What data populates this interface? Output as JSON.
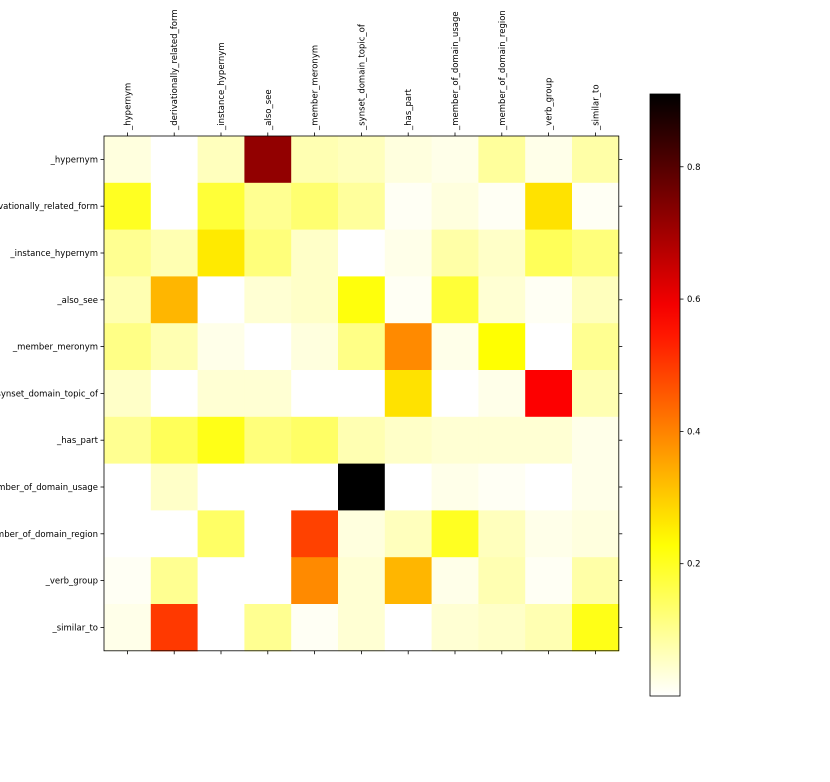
{
  "chart_data": {
    "type": "heatmap",
    "title": "",
    "xlabel": "",
    "ylabel": "",
    "colormap": "hot_r",
    "x_labels": [
      "_hypernym",
      "_derivationally_related_form",
      "_instance_hypernym",
      "_also_see",
      "_member_meronym",
      "_synset_domain_topic_of",
      "_has_part",
      "_member_of_domain_usage",
      "_member_of_domain_region",
      "_verb_group",
      "_similar_to"
    ],
    "y_labels": [
      "_hypernym",
      "_derivationally_related_form",
      "_instance_hypernym",
      "_also_see",
      "_member_meronym",
      "_synset_domain_topic_of",
      "_has_part",
      "_member_of_domain_usage",
      "_member_of_domain_region",
      "_verb_group",
      "_similar_to"
    ],
    "values": [
      [
        0.03,
        0.0,
        0.06,
        0.72,
        0.07,
        0.06,
        0.03,
        0.02,
        0.09,
        0.02,
        0.08
      ],
      [
        0.2,
        0.0,
        0.18,
        0.1,
        0.13,
        0.09,
        0.01,
        0.03,
        0.01,
        0.27,
        0.01
      ],
      [
        0.1,
        0.07,
        0.26,
        0.12,
        0.05,
        0.0,
        0.02,
        0.08,
        0.05,
        0.15,
        0.12
      ],
      [
        0.07,
        0.33,
        0.0,
        0.04,
        0.05,
        0.22,
        0.01,
        0.18,
        0.04,
        0.01,
        0.06
      ],
      [
        0.11,
        0.07,
        0.02,
        0.0,
        0.03,
        0.11,
        0.39,
        0.02,
        0.23,
        0.0,
        0.1
      ],
      [
        0.05,
        0.0,
        0.04,
        0.04,
        0.0,
        0.0,
        0.27,
        0.0,
        0.02,
        0.58,
        0.07
      ],
      [
        0.1,
        0.15,
        0.21,
        0.12,
        0.14,
        0.07,
        0.05,
        0.04,
        0.04,
        0.04,
        0.02
      ],
      [
        0.0,
        0.05,
        0.0,
        0.0,
        0.0,
        0.91,
        0.0,
        0.02,
        0.01,
        0.0,
        0.02
      ],
      [
        0.0,
        0.0,
        0.14,
        0.0,
        0.49,
        0.03,
        0.06,
        0.2,
        0.06,
        0.02,
        0.03
      ],
      [
        0.01,
        0.1,
        0.0,
        0.0,
        0.39,
        0.04,
        0.33,
        0.02,
        0.07,
        0.01,
        0.08
      ],
      [
        0.02,
        0.5,
        0.0,
        0.1,
        0.01,
        0.04,
        0.0,
        0.04,
        0.05,
        0.07,
        0.21
      ]
    ],
    "colorbar": {
      "range": [
        0.0,
        0.91
      ],
      "ticks": [
        0.2,
        0.4,
        0.6,
        0.8
      ],
      "tick_labels": [
        "0.2",
        "0.4",
        "0.6",
        "0.8"
      ]
    },
    "grid": false,
    "legend": "colorbar-right"
  }
}
